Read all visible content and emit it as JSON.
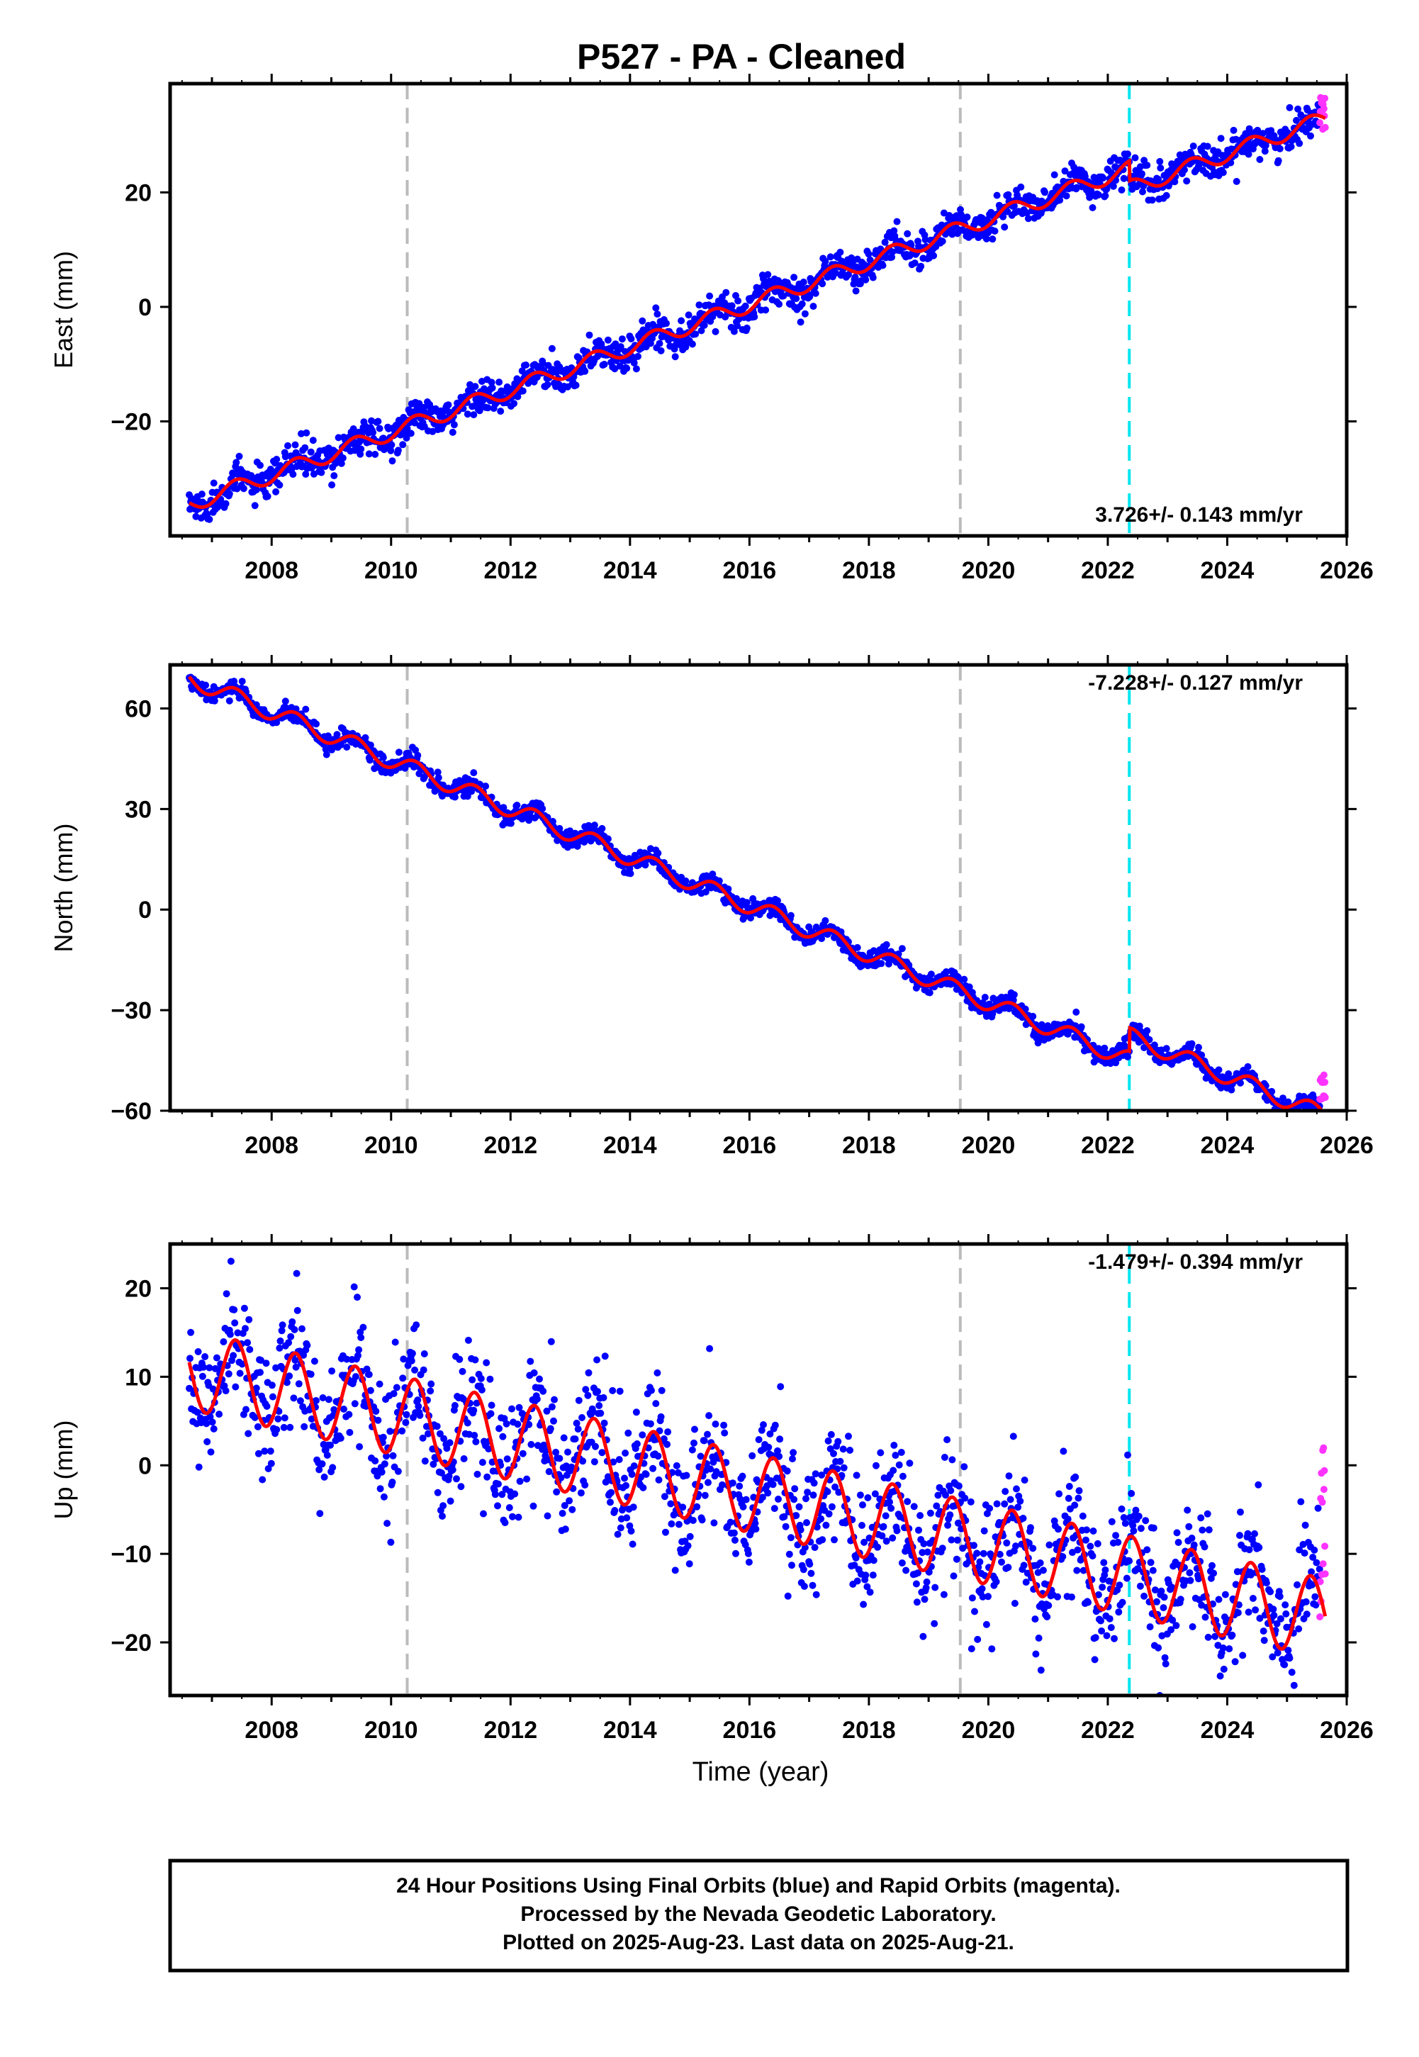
{
  "title": "P527  - PA - Cleaned",
  "colors": {
    "final": "#0000ff",
    "rapid": "#ff33ff",
    "model": "#ff0000",
    "event_gray": "#bbbbbb",
    "event_cyan": "#00e5ee"
  },
  "x_tick_labels": [
    "2008",
    "2010",
    "2012",
    "2014",
    "2016",
    "2018",
    "2020",
    "2022",
    "2024",
    "2026"
  ],
  "x_axis_label": "Time (year)",
  "footer": {
    "line1": "24 Hour Positions Using Final Orbits (blue) and Rapid Orbits (magenta).",
    "line2": "Processed by the Nevada Geodetic Laboratory.",
    "line3": "Plotted on 2025-Aug-23. Last data on 2025-Aug-21."
  },
  "chart_data": [
    {
      "type": "scatter",
      "component": "east",
      "ylabel": "East (mm)",
      "ylim": [
        -40,
        39
      ],
      "xlim": [
        2006.3,
        2026.0
      ],
      "yticks": [
        -20,
        0,
        20
      ],
      "ytick_labels": [
        "−20",
        "0",
        "20"
      ],
      "rate_label": "3.726+/- 0.143 mm/yr",
      "rate_position": "bottom-right",
      "event_lines": [
        {
          "x": 2010.27,
          "color": "gray"
        },
        {
          "x": 2019.53,
          "color": "gray"
        },
        {
          "x": 2022.36,
          "color": "cyan"
        }
      ],
      "model": {
        "start_x": 2006.62,
        "start_y": -34.5,
        "rate": 3.726,
        "seasonal_amp": 1.4,
        "offsets": [
          {
            "x": 2022.36,
            "dy": -3.5
          }
        ],
        "noise": 1.5
      },
      "rapid_orbit_points": {
        "x_range": [
          2025.55,
          2025.64
        ],
        "y_range": [
          31,
          37
        ]
      }
    },
    {
      "type": "scatter",
      "component": "north",
      "ylabel": "North (mm)",
      "ylim": [
        -60,
        73
      ],
      "xlim": [
        2006.3,
        2026.0
      ],
      "yticks": [
        -60,
        -30,
        0,
        30,
        60
      ],
      "ytick_labels": [
        "−60",
        "−30",
        "0",
        "30",
        "60"
      ],
      "rate_label": "-7.228+/- 0.127 mm/yr",
      "rate_position": "top-right",
      "event_lines": [
        {
          "x": 2010.27,
          "color": "gray"
        },
        {
          "x": 2019.53,
          "color": "gray"
        },
        {
          "x": 2022.36,
          "color": "cyan"
        }
      ],
      "model": {
        "start_x": 2006.62,
        "start_y": 69.0,
        "rate": -7.228,
        "seasonal_amp": 2.6,
        "offsets": [
          {
            "x": 2022.36,
            "dy": 7.0
          }
        ],
        "noise": 1.4
      },
      "rapid_orbit_points": {
        "x_range": [
          2025.55,
          2025.64
        ],
        "y_range": [
          -57,
          -49
        ]
      }
    },
    {
      "type": "scatter",
      "component": "up",
      "ylabel": "Up (mm)",
      "ylim": [
        -26,
        25
      ],
      "xlim": [
        2006.3,
        2026.0
      ],
      "yticks": [
        -20,
        -10,
        0,
        10,
        20
      ],
      "ytick_labels": [
        "−20",
        "−10",
        "0",
        "10",
        "20"
      ],
      "rate_label": "-1.479+/- 0.394 mm/yr",
      "rate_position": "top-right",
      "event_lines": [
        {
          "x": 2010.27,
          "color": "gray"
        },
        {
          "x": 2019.53,
          "color": "gray"
        },
        {
          "x": 2022.36,
          "color": "cyan"
        }
      ],
      "model": {
        "start_x": 2006.62,
        "start_y": 10.8,
        "rate": -1.479,
        "seasonal_amp": 4.5,
        "offsets": [],
        "noise": 3.5
      },
      "rapid_orbit_points": {
        "x_range": [
          2025.55,
          2025.64
        ],
        "y_range": [
          -18,
          2
        ]
      }
    }
  ]
}
